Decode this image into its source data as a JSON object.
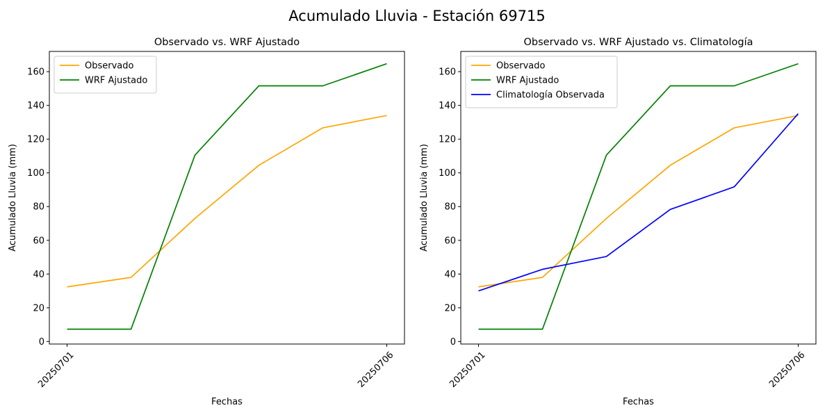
{
  "figure": {
    "title": "Acumulado Lluvia - Estación 69715"
  },
  "chart_data": [
    {
      "type": "line",
      "title": "Observado vs. WRF Ajustado",
      "xlabel": "Fechas",
      "ylabel": "Acumulado Lluvia (mm)",
      "x": [
        "20250701",
        "20250702",
        "20250703",
        "20250704",
        "20250705",
        "20250706"
      ],
      "xticks": [
        "20250701",
        "20250706"
      ],
      "yticks": [
        0,
        20,
        40,
        60,
        80,
        100,
        120,
        140,
        160
      ],
      "ylim": [
        -1.5,
        172
      ],
      "grid": false,
      "legend_position": "upper-left",
      "series": [
        {
          "name": "Observado",
          "color": "#ffa500",
          "values": [
            32.4,
            38.0,
            73.0,
            104.5,
            126.7,
            134.0
          ]
        },
        {
          "name": "WRF Ajustado",
          "color": "#008000",
          "values": [
            7.3,
            7.3,
            110.5,
            151.6,
            151.6,
            164.7
          ]
        }
      ]
    },
    {
      "type": "line",
      "title": "Observado vs. WRF Ajustado vs. Climatología",
      "xlabel": "Fechas",
      "ylabel": "Acumulado Lluvia (mm)",
      "x": [
        "20250701",
        "20250702",
        "20250703",
        "20250704",
        "20250705",
        "20250706"
      ],
      "xticks": [
        "20250701",
        "20250706"
      ],
      "yticks": [
        0,
        20,
        40,
        60,
        80,
        100,
        120,
        140,
        160
      ],
      "ylim": [
        -1.5,
        172
      ],
      "grid": false,
      "legend_position": "upper-left",
      "series": [
        {
          "name": "Observado",
          "color": "#ffa500",
          "values": [
            32.4,
            38.0,
            73.0,
            104.5,
            126.7,
            134.0
          ]
        },
        {
          "name": "WRF Ajustado",
          "color": "#008000",
          "values": [
            7.3,
            7.3,
            110.5,
            151.6,
            151.6,
            164.7
          ]
        },
        {
          "name": "Climatología Observada",
          "color": "#0000ff",
          "values": [
            30.0,
            42.8,
            50.4,
            78.3,
            91.7,
            135.1
          ]
        }
      ]
    }
  ]
}
